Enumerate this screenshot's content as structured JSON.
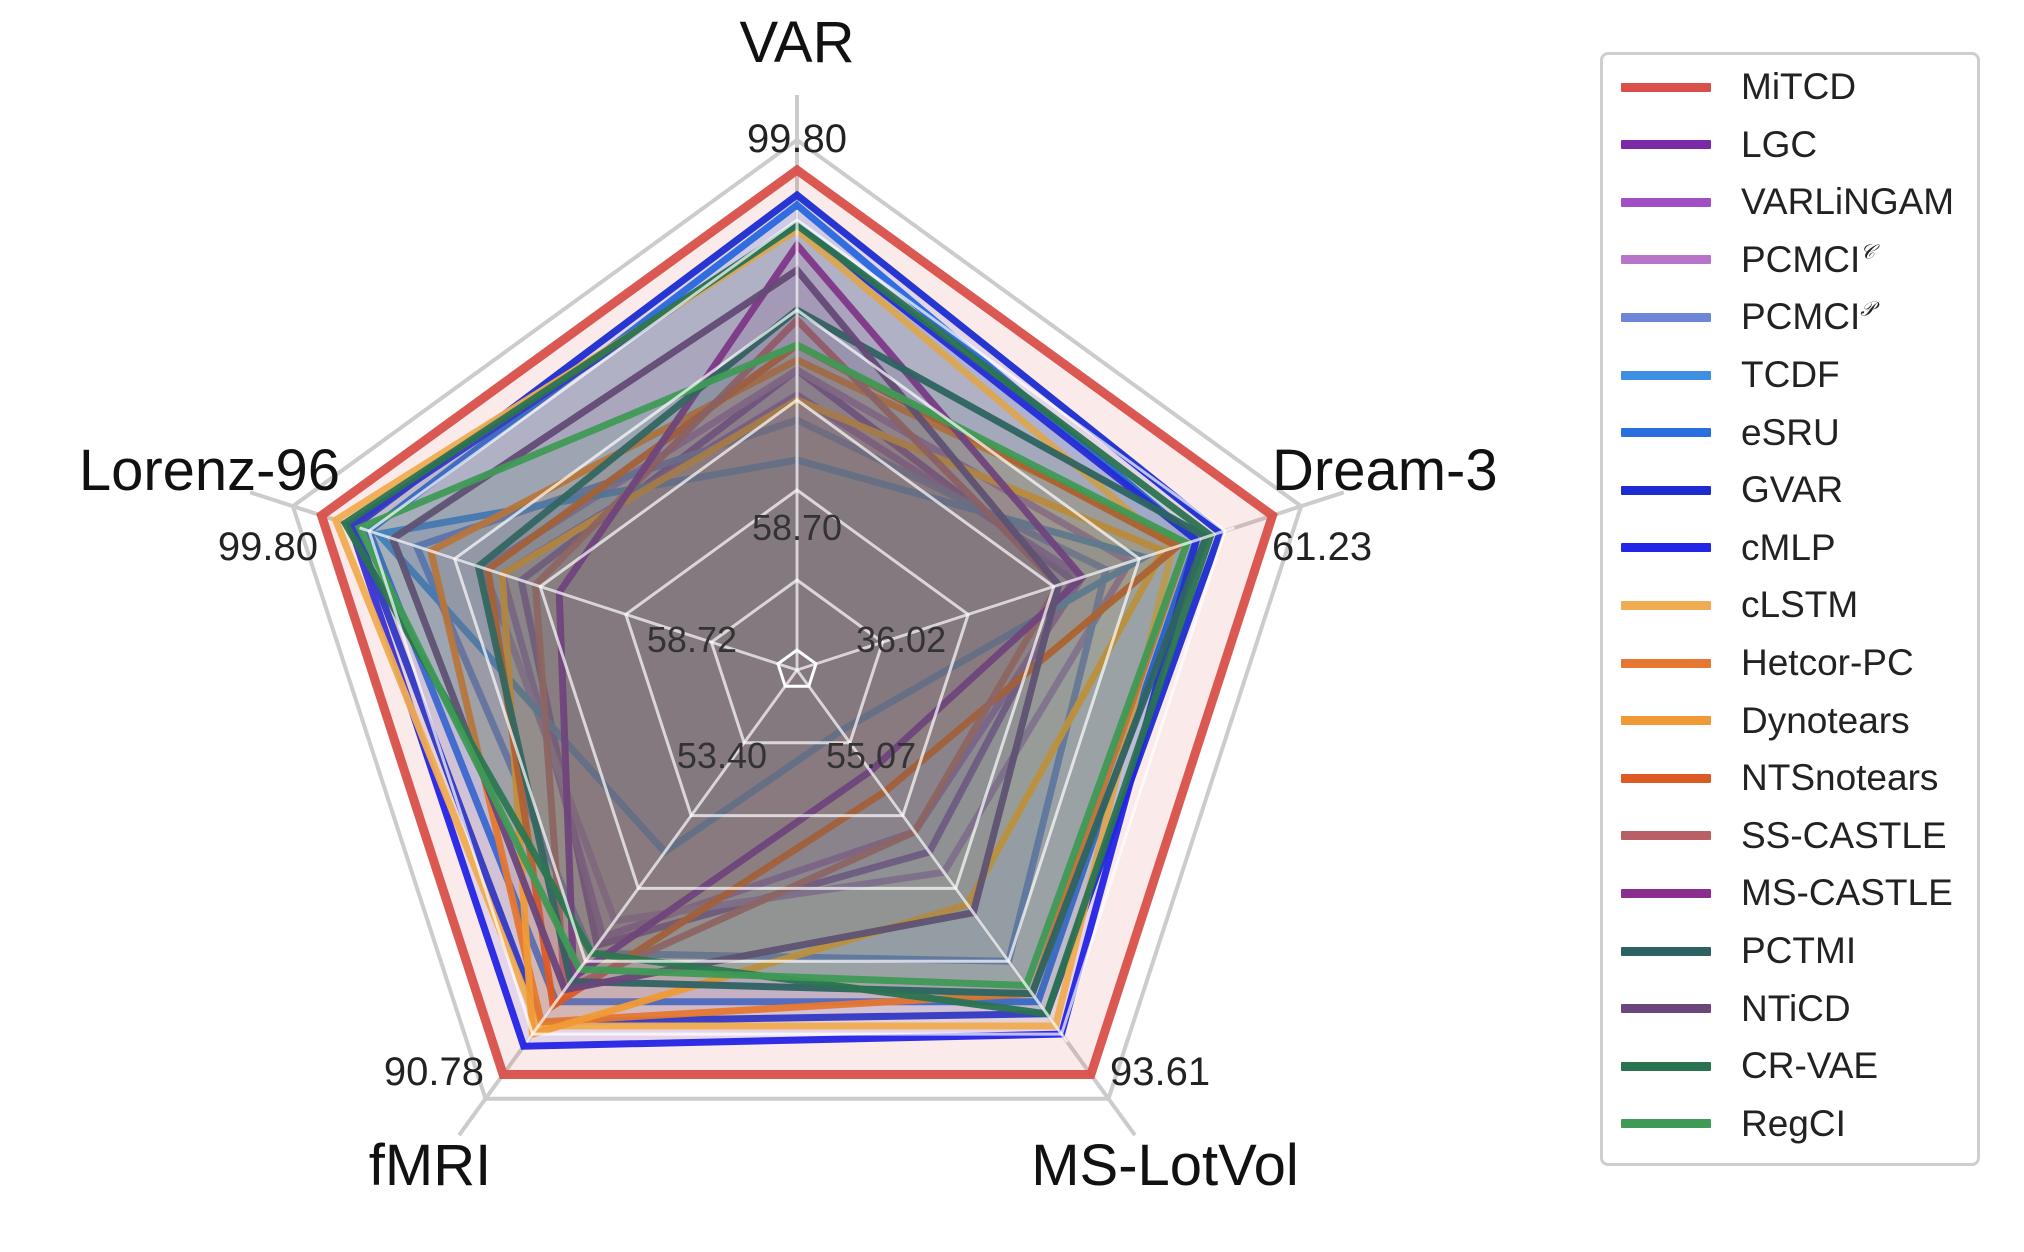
{
  "chart_data": {
    "type": "radar",
    "axes": [
      {
        "name": "VAR",
        "max_label": "99.80",
        "min_label": "58.70",
        "min": 58.7,
        "max": 99.8
      },
      {
        "name": "Dream-3",
        "max_label": "61.23",
        "min_label": "36.02",
        "min": 36.02,
        "max": 61.23
      },
      {
        "name": "MS-LotVol",
        "max_label": "93.61",
        "min_label": "55.07",
        "min": 55.07,
        "max": 93.61
      },
      {
        "name": "fMRI",
        "max_label": "90.78",
        "min_label": "53.40",
        "min": 53.4,
        "max": 90.78
      },
      {
        "name": "Lorenz-96",
        "max_label": "99.80",
        "min_label": "58.72",
        "min": 58.72,
        "max": 99.8
      }
    ],
    "series": [
      {
        "name": "MiTCD",
        "sup": "",
        "color": "#d9504a",
        "r": [
          1.0,
          1.0,
          1.0,
          1.0,
          1.0
        ]
      },
      {
        "name": "LGC",
        "sup": "",
        "color": "#7b2aa7",
        "r": [
          0.6,
          0.58,
          0.45,
          0.68,
          0.58
        ]
      },
      {
        "name": "VARLiNGAM",
        "sup": "",
        "color": "#a24fc6",
        "r": [
          0.55,
          0.6,
          0.4,
          0.66,
          0.62
        ]
      },
      {
        "name": "PCMCI",
        "sup": "𝒞",
        "color": "#b774c8",
        "r": [
          0.6,
          0.7,
          0.5,
          0.62,
          0.66
        ]
      },
      {
        "name": "PCMCI",
        "sup": "𝒫",
        "color": "#6f85d8",
        "r": [
          0.5,
          0.65,
          0.72,
          0.7,
          0.8
        ]
      },
      {
        "name": "TCDF",
        "sup": "",
        "color": "#3d8fe4",
        "r": [
          0.42,
          0.73,
          0.15,
          0.45,
          0.88
        ]
      },
      {
        "name": "eSRU",
        "sup": "",
        "color": "#2a6fe0",
        "r": [
          0.93,
          0.84,
          0.82,
          0.82,
          0.9
        ]
      },
      {
        "name": "GVAR",
        "sup": "",
        "color": "#1c2cd0",
        "r": [
          0.95,
          0.89,
          0.85,
          0.87,
          0.93
        ]
      },
      {
        "name": "cMLP",
        "sup": "",
        "color": "#2424e6",
        "r": [
          0.89,
          0.84,
          0.9,
          0.93,
          0.94
        ]
      },
      {
        "name": "cLSTM",
        "sup": "",
        "color": "#f0ac52",
        "r": [
          0.88,
          0.79,
          0.88,
          0.88,
          0.97
        ]
      },
      {
        "name": "Hetcor-PC",
        "sup": "",
        "color": "#e57730",
        "r": [
          0.62,
          0.82,
          0.8,
          0.87,
          0.77
        ]
      },
      {
        "name": "Dynotears",
        "sup": "",
        "color": "#f09a35",
        "r": [
          0.54,
          0.77,
          0.58,
          0.9,
          0.62
        ]
      },
      {
        "name": "NTSnotears",
        "sup": "",
        "color": "#dc5a24",
        "r": [
          0.65,
          0.8,
          0.3,
          0.83,
          0.65
        ]
      },
      {
        "name": "SS-CASTLE",
        "sup": "",
        "color": "#b86066",
        "r": [
          0.7,
          0.55,
          0.4,
          0.79,
          0.55
        ]
      },
      {
        "name": "MS-CASTLE",
        "sup": "",
        "color": "#8a2f8e",
        "r": [
          0.85,
          0.6,
          0.25,
          0.76,
          0.5
        ]
      },
      {
        "name": "PCTMI",
        "sup": "",
        "color": "#2e6262",
        "r": [
          0.72,
          0.86,
          0.8,
          0.77,
          0.67
        ]
      },
      {
        "name": "NTiCD",
        "sup": "",
        "color": "#6a467a",
        "r": [
          0.8,
          0.55,
          0.6,
          0.79,
          0.85
        ]
      },
      {
        "name": "CR-VAE",
        "sup": "",
        "color": "#2a7350",
        "r": [
          0.89,
          0.87,
          0.85,
          0.7,
          0.95
        ]
      },
      {
        "name": "RegCI",
        "sup": "",
        "color": "#3f9a55",
        "r": [
          0.65,
          0.82,
          0.78,
          0.74,
          0.92
        ]
      }
    ],
    "legend_position": "right",
    "grid": true
  }
}
